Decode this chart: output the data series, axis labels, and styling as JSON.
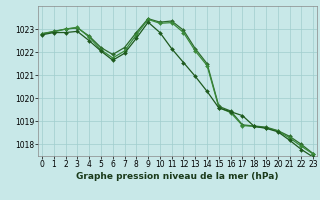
{
  "title": "Graphe pression niveau de la mer (hPa)",
  "background_color": "#c8e8e8",
  "grid_color": "#a0cece",
  "series1": [
    1022.8,
    1022.9,
    1023.0,
    1023.05,
    1022.7,
    1022.2,
    1021.9,
    1022.2,
    1022.85,
    1023.45,
    1023.3,
    1023.35,
    1022.95,
    1022.15,
    1021.5,
    1019.65,
    1019.45,
    1018.85,
    1018.8,
    1018.75,
    1018.6,
    1018.35,
    1018.0,
    1017.6
  ],
  "series2": [
    1022.8,
    1022.88,
    1023.0,
    1023.08,
    1022.65,
    1022.1,
    1021.75,
    1022.05,
    1022.75,
    1023.42,
    1023.25,
    1023.28,
    1022.85,
    1022.05,
    1021.42,
    1019.6,
    1019.38,
    1018.82,
    1018.78,
    1018.72,
    1018.58,
    1018.28,
    1017.92,
    1017.58
  ],
  "series3": [
    1022.75,
    1022.85,
    1022.85,
    1022.9,
    1022.5,
    1022.05,
    1021.65,
    1021.95,
    1022.6,
    1023.3,
    1022.85,
    1022.15,
    1021.55,
    1020.95,
    1020.3,
    1019.58,
    1019.42,
    1019.25,
    1018.78,
    1018.7,
    1018.55,
    1018.18,
    1017.78,
    1017.45
  ],
  "line_colors": [
    "#2d6b2d",
    "#3a8a3a",
    "#1e5a1e"
  ],
  "xlim": [
    0,
    23
  ],
  "ylim": [
    1017.5,
    1024.0
  ],
  "yticks": [
    1018,
    1019,
    1020,
    1021,
    1022,
    1023
  ],
  "xticks": [
    0,
    1,
    2,
    3,
    4,
    5,
    6,
    7,
    8,
    9,
    10,
    11,
    12,
    13,
    14,
    15,
    16,
    17,
    18,
    19,
    20,
    21,
    22,
    23
  ],
  "tick_fontsize": 5.5,
  "xlabel_fontsize": 6.5,
  "marker_size": 2.0,
  "linewidth": 0.9
}
